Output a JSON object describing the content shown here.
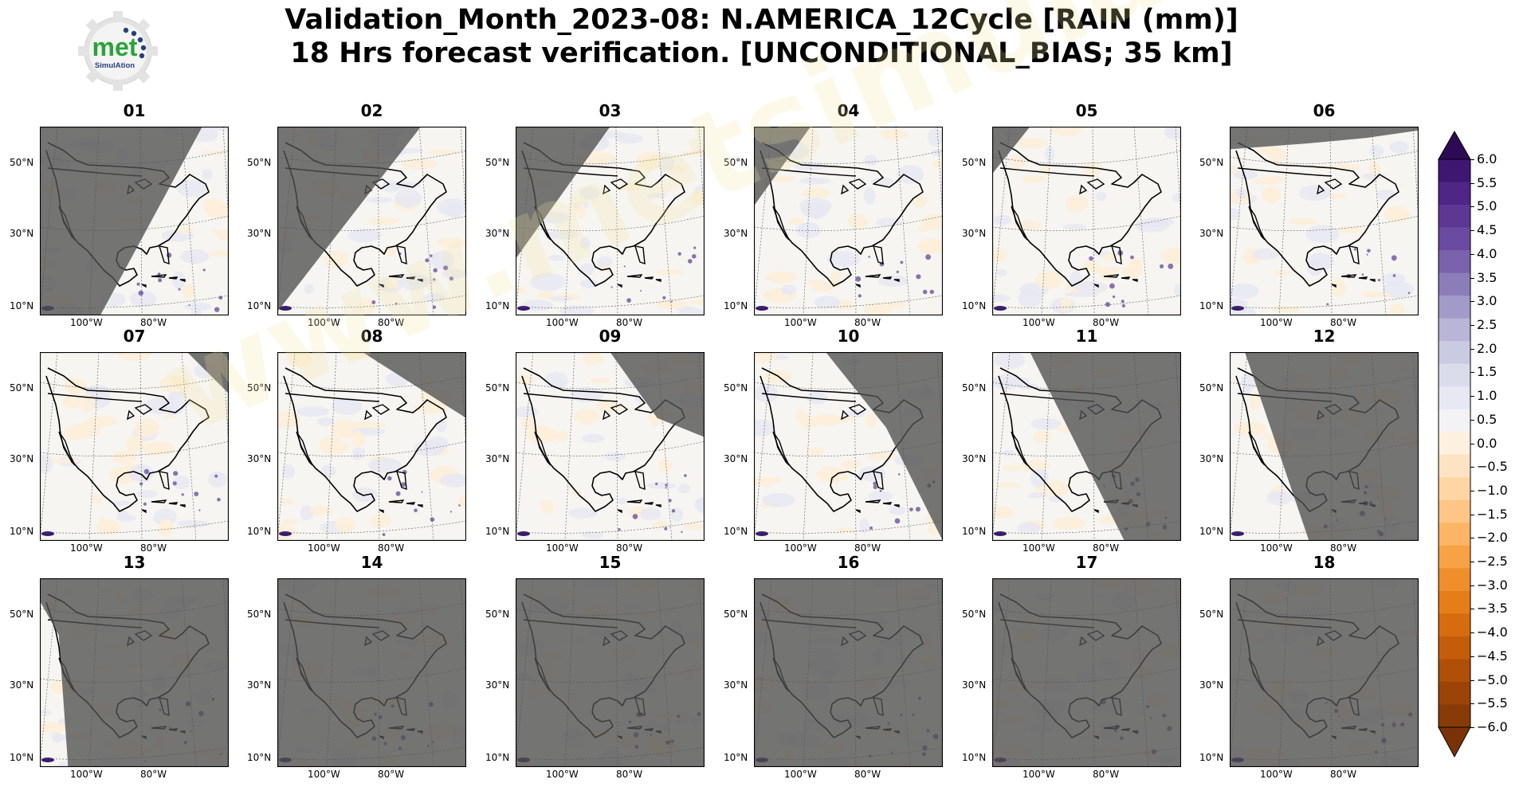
{
  "title_line1": "Validation_Month_2023-08: N.AMERICA_12Cycle [RAIN (mm)]",
  "title_line2": "18 Hrs forecast verification. [UNCONDITIONAL_BIAS; 35 km]",
  "logo": {
    "word": "met",
    "sub": "SimulAtion",
    "icon": "gear-logo-icon"
  },
  "watermark_text": "www.metsimulation.com",
  "lat_labels": [
    "50°N",
    "30°N",
    "10°N"
  ],
  "lon_labels": [
    "100°W",
    "80°W"
  ],
  "panels": [
    {
      "label": "01",
      "night": [
        [
          0,
          0
        ],
        [
          0.86,
          0
        ],
        [
          0.32,
          1
        ],
        [
          0,
          1
        ]
      ]
    },
    {
      "label": "02",
      "night": [
        [
          0,
          0
        ],
        [
          0.76,
          0
        ],
        [
          0,
          0.98
        ]
      ]
    },
    {
      "label": "03",
      "night": [
        [
          0,
          0
        ],
        [
          0.5,
          0
        ],
        [
          0,
          0.7
        ]
      ]
    },
    {
      "label": "04",
      "night": [
        [
          0,
          0
        ],
        [
          0.3,
          0
        ],
        [
          0,
          0.42
        ]
      ]
    },
    {
      "label": "05",
      "night": [
        [
          0,
          0
        ],
        [
          0.2,
          0
        ],
        [
          0,
          0.25
        ]
      ]
    },
    {
      "label": "06",
      "night": [
        [
          0,
          0
        ],
        [
          1,
          0
        ],
        [
          1,
          0.02
        ],
        [
          0.72,
          0.06
        ],
        [
          0.4,
          0.09
        ],
        [
          0,
          0.12
        ]
      ]
    },
    {
      "label": "07",
      "night": [
        [
          0.78,
          0
        ],
        [
          1,
          0
        ],
        [
          1,
          0.22
        ]
      ]
    },
    {
      "label": "08",
      "night": [
        [
          0.45,
          0
        ],
        [
          1,
          0
        ],
        [
          1,
          0.35
        ]
      ]
    },
    {
      "label": "09",
      "night": [
        [
          0.5,
          0
        ],
        [
          1,
          0
        ],
        [
          1,
          0.45
        ],
        [
          0.75,
          0.35
        ]
      ]
    },
    {
      "label": "10",
      "night": [
        [
          0.38,
          0
        ],
        [
          1,
          0
        ],
        [
          1,
          1
        ],
        [
          0.95,
          0.9
        ],
        [
          0.7,
          0.4
        ]
      ]
    },
    {
      "label": "11",
      "night": [
        [
          0.2,
          0
        ],
        [
          1,
          0
        ],
        [
          1,
          1
        ],
        [
          0.7,
          1
        ]
      ]
    },
    {
      "label": "12",
      "night": [
        [
          0.08,
          0
        ],
        [
          1,
          0
        ],
        [
          1,
          1
        ],
        [
          0.42,
          1
        ]
      ]
    },
    {
      "label": "13",
      "night": [
        [
          0,
          0
        ],
        [
          1,
          0
        ],
        [
          1,
          1
        ],
        [
          0.15,
          1
        ],
        [
          0.1,
          0.3
        ],
        [
          0,
          0.12
        ]
      ]
    },
    {
      "label": "14",
      "night": [
        [
          0,
          0
        ],
        [
          1,
          0
        ],
        [
          1,
          1
        ],
        [
          0,
          1
        ]
      ]
    },
    {
      "label": "15",
      "night": [
        [
          0,
          0
        ],
        [
          1,
          0
        ],
        [
          1,
          1
        ],
        [
          0,
          1
        ]
      ]
    },
    {
      "label": "16",
      "night": [
        [
          0,
          0
        ],
        [
          1,
          0
        ],
        [
          1,
          1
        ],
        [
          0,
          1
        ]
      ]
    },
    {
      "label": "17",
      "night": [
        [
          0,
          0
        ],
        [
          1,
          0
        ],
        [
          1,
          1
        ],
        [
          0,
          1
        ]
      ]
    },
    {
      "label": "18",
      "night": [
        [
          0,
          0
        ],
        [
          1,
          0
        ],
        [
          1,
          1
        ],
        [
          0,
          1
        ]
      ]
    }
  ],
  "colorbar": {
    "labels": [
      "6.0",
      "5.5",
      "5.0",
      "4.5",
      "4.0",
      "3.5",
      "3.0",
      "2.5",
      "2.0",
      "1.5",
      "1.0",
      "0.5",
      "0.0",
      "−0.5",
      "−1.0",
      "−1.5",
      "−2.0",
      "−2.5",
      "−3.0",
      "−3.5",
      "−4.0",
      "−4.5",
      "−5.0",
      "−5.5",
      "−6.0"
    ],
    "colors": [
      "#401673",
      "#4f2585",
      "#5e3795",
      "#6b4aa1",
      "#7a62ad",
      "#8c7db9",
      "#a29ac8",
      "#b8b5d7",
      "#cacae3",
      "#dadcec",
      "#e7e8f3",
      "#f3f3f5",
      "#fdf0de",
      "#fee3c2",
      "#fdd6a4",
      "#fdc686",
      "#fcb565",
      "#f7a245",
      "#ef8f2b",
      "#e57d19",
      "#d66c0e",
      "#c45d0a",
      "#b04f08",
      "#9c4407",
      "#883a07"
    ],
    "top_color": "#2d0a55",
    "bottom_color": "#7a3307"
  }
}
